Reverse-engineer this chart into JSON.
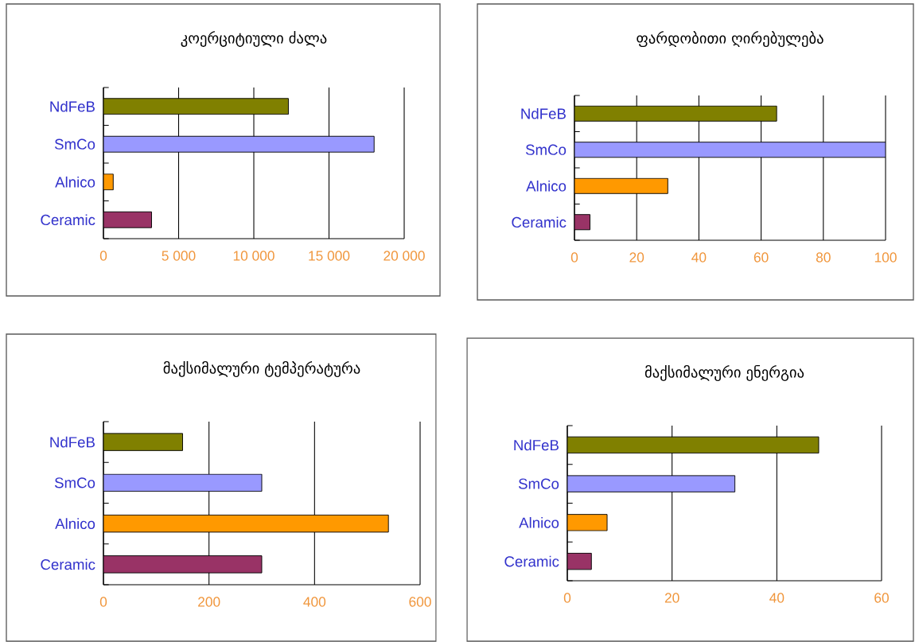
{
  "chart_data": [
    {
      "type": "bar",
      "orientation": "horizontal",
      "title": "კოერციტიული ძალა",
      "categories": [
        "NdFeB",
        "SmCo",
        "Alnico",
        "Ceramic"
      ],
      "values": [
        12300,
        18000,
        650,
        3200
      ],
      "colors": [
        "#808000",
        "#9999ff",
        "#ff9900",
        "#993366"
      ],
      "xlim": [
        0,
        20000
      ],
      "xticks": [
        0,
        {
          "value": 5000,
          "label": "5 000"
        },
        {
          "value": 10000,
          "label": "10 000"
        },
        {
          "value": 15000,
          "label": "15 000"
        },
        {
          "value": 20000,
          "label": "20 000"
        }
      ],
      "grid": "x"
    },
    {
      "type": "bar",
      "orientation": "horizontal",
      "title": "ფარდობითი ღირებულება",
      "categories": [
        "NdFeB",
        "SmCo",
        "Alnico",
        "Ceramic"
      ],
      "values": [
        65,
        100,
        30,
        5
      ],
      "colors": [
        "#808000",
        "#9999ff",
        "#ff9900",
        "#993366"
      ],
      "xlim": [
        0,
        100
      ],
      "xticks": [
        0,
        20,
        40,
        60,
        80,
        100
      ],
      "grid": "x"
    },
    {
      "type": "bar",
      "orientation": "horizontal",
      "title": "მაქსიმალური ტემპერატურა",
      "categories": [
        "NdFeB",
        "SmCo",
        "Alnico",
        "Ceramic"
      ],
      "values": [
        150,
        300,
        540,
        300
      ],
      "colors": [
        "#808000",
        "#9999ff",
        "#ff9900",
        "#993366"
      ],
      "xlim": [
        0,
        600
      ],
      "xticks": [
        0,
        200,
        400,
        600
      ],
      "grid": "x"
    },
    {
      "type": "bar",
      "orientation": "horizontal",
      "title": "მაქსიმალური ენერგია",
      "categories": [
        "NdFeB",
        "SmCo",
        "Alnico",
        "Ceramic"
      ],
      "values": [
        48,
        32,
        7.6,
        4.6
      ],
      "colors": [
        "#808000",
        "#9999ff",
        "#ff9900",
        "#993366"
      ],
      "xlim": [
        0,
        60
      ],
      "xticks": [
        0,
        20,
        40,
        60
      ],
      "grid": "x"
    }
  ]
}
